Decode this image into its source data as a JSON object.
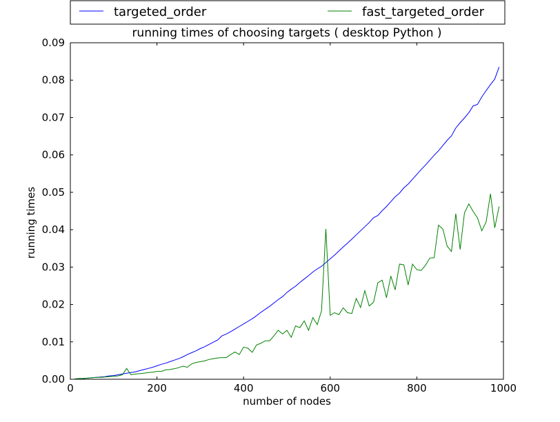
{
  "chart_data": {
    "type": "line",
    "title": "running times of choosing targets ( desktop Python )",
    "xlabel": "number of nodes",
    "ylabel": "running times",
    "xlim": [
      0,
      1000
    ],
    "ylim": [
      0,
      0.09
    ],
    "xticks": [
      0,
      200,
      400,
      600,
      800,
      1000
    ],
    "xtick_labels": [
      "0",
      "200",
      "400",
      "600",
      "800",
      "1000"
    ],
    "yticks": [
      0,
      0.01,
      0.02,
      0.03,
      0.04,
      0.05,
      0.06,
      0.07,
      0.08,
      0.09
    ],
    "ytick_labels": [
      "0.00",
      "0.01",
      "0.02",
      "0.03",
      "0.04",
      "0.05",
      "0.06",
      "0.07",
      "0.08",
      "0.09"
    ],
    "grid": false,
    "legend_position": "top, above plot",
    "series": [
      {
        "name": "targeted_order",
        "color": "#0000ff",
        "x": [
          10,
          20,
          30,
          40,
          50,
          60,
          70,
          80,
          90,
          100,
          110,
          120,
          130,
          140,
          150,
          160,
          170,
          180,
          190,
          200,
          210,
          220,
          230,
          240,
          250,
          260,
          270,
          280,
          290,
          300,
          310,
          320,
          330,
          340,
          350,
          360,
          370,
          380,
          390,
          400,
          410,
          420,
          430,
          440,
          450,
          460,
          470,
          480,
          490,
          500,
          510,
          520,
          530,
          540,
          550,
          560,
          570,
          580,
          590,
          600,
          610,
          620,
          630,
          640,
          650,
          660,
          670,
          680,
          690,
          700,
          710,
          720,
          730,
          740,
          750,
          760,
          770,
          780,
          790,
          800,
          810,
          820,
          830,
          840,
          850,
          860,
          870,
          880,
          890,
          900,
          910,
          920,
          930,
          940,
          950,
          960,
          970,
          980,
          990
        ],
        "y": [
          0.0001,
          0.0001,
          0.0002,
          0.0003,
          0.0004,
          0.0005,
          0.0006,
          0.0007,
          0.0009,
          0.001,
          0.0012,
          0.0014,
          0.0016,
          0.0018,
          0.002,
          0.0023,
          0.0026,
          0.0029,
          0.0032,
          0.0036,
          0.004,
          0.0043,
          0.0047,
          0.0051,
          0.0055,
          0.006,
          0.0066,
          0.0071,
          0.0076,
          0.0082,
          0.0087,
          0.0093,
          0.0099,
          0.0105,
          0.0116,
          0.0121,
          0.0127,
          0.0134,
          0.0141,
          0.0148,
          0.0155,
          0.0162,
          0.017,
          0.0179,
          0.0187,
          0.0195,
          0.0204,
          0.0213,
          0.0221,
          0.0232,
          0.0241,
          0.0249,
          0.0259,
          0.0268,
          0.0277,
          0.0287,
          0.0295,
          0.0302,
          0.0312,
          0.0322,
          0.0332,
          0.0343,
          0.0354,
          0.0364,
          0.0375,
          0.0386,
          0.0397,
          0.0408,
          0.0419,
          0.0432,
          0.0438,
          0.0451,
          0.0462,
          0.0475,
          0.0488,
          0.0498,
          0.0512,
          0.0522,
          0.0535,
          0.0548,
          0.0561,
          0.0573,
          0.0586,
          0.0599,
          0.0611,
          0.0625,
          0.0639,
          0.0651,
          0.0672,
          0.0686,
          0.0699,
          0.0713,
          0.0731,
          0.0735,
          0.0755,
          0.0772,
          0.0788,
          0.0803,
          0.0835
        ]
      },
      {
        "name": "fast_targeted_order",
        "color": "#008000",
        "x": [
          10,
          20,
          30,
          40,
          50,
          60,
          70,
          80,
          90,
          100,
          110,
          120,
          130,
          140,
          150,
          160,
          170,
          180,
          190,
          200,
          210,
          220,
          230,
          240,
          250,
          260,
          270,
          280,
          290,
          300,
          310,
          320,
          330,
          340,
          350,
          360,
          370,
          380,
          390,
          400,
          410,
          420,
          430,
          440,
          450,
          460,
          470,
          480,
          490,
          500,
          510,
          520,
          530,
          540,
          550,
          560,
          570,
          580,
          590,
          600,
          610,
          620,
          630,
          640,
          650,
          660,
          670,
          680,
          690,
          700,
          710,
          720,
          730,
          740,
          750,
          760,
          770,
          780,
          790,
          800,
          810,
          820,
          830,
          840,
          850,
          860,
          870,
          880,
          890,
          900,
          910,
          920,
          930,
          940,
          950,
          960,
          970,
          980,
          990
        ],
        "y": [
          0.0001,
          0.0002,
          0.0002,
          0.0003,
          0.0004,
          0.0005,
          0.0005,
          0.0006,
          0.0007,
          0.0008,
          0.0009,
          0.0012,
          0.0029,
          0.0012,
          0.0014,
          0.0015,
          0.0016,
          0.0018,
          0.0019,
          0.0021,
          0.0021,
          0.0025,
          0.0026,
          0.0028,
          0.0031,
          0.0035,
          0.0032,
          0.0041,
          0.0045,
          0.0047,
          0.0049,
          0.0053,
          0.0055,
          0.0057,
          0.0058,
          0.0058,
          0.0066,
          0.0073,
          0.0066,
          0.0086,
          0.0083,
          0.0072,
          0.0092,
          0.0096,
          0.0103,
          0.0103,
          0.0116,
          0.0131,
          0.0121,
          0.0131,
          0.0112,
          0.0143,
          0.0138,
          0.0156,
          0.0131,
          0.0165,
          0.0146,
          0.0183,
          0.0402,
          0.0171,
          0.0178,
          0.0173,
          0.0191,
          0.0178,
          0.0176,
          0.0216,
          0.0192,
          0.0237,
          0.0196,
          0.0206,
          0.0258,
          0.0265,
          0.0218,
          0.0276,
          0.0239,
          0.0308,
          0.0306,
          0.0252,
          0.0308,
          0.0293,
          0.0291,
          0.0305,
          0.0324,
          0.0325,
          0.0412,
          0.0402,
          0.0356,
          0.0342,
          0.0443,
          0.0347,
          0.0445,
          0.0469,
          0.0449,
          0.0432,
          0.0397,
          0.0421,
          0.0496,
          0.0405,
          0.0462
        ]
      }
    ]
  }
}
